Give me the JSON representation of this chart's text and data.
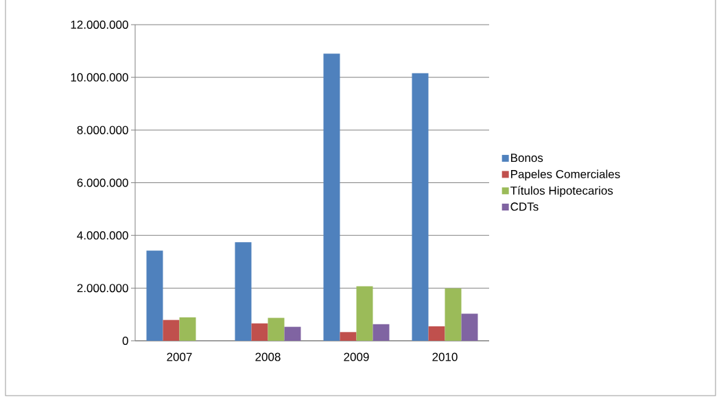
{
  "chart_data": {
    "type": "bar",
    "categories": [
      "2007",
      "2008",
      "2009",
      "2010"
    ],
    "series": [
      {
        "name": "Bonos",
        "color": "#4f81bd",
        "values": [
          3420000,
          3740000,
          10900000,
          10160000
        ]
      },
      {
        "name": "Papeles Comerciales",
        "color": "#c0504d",
        "values": [
          790000,
          660000,
          330000,
          550000
        ]
      },
      {
        "name": "Títulos Hipotecarios",
        "color": "#9bbb59",
        "values": [
          890000,
          870000,
          2070000,
          1990000
        ]
      },
      {
        "name": "CDTs",
        "color": "#8064a2",
        "values": [
          null,
          530000,
          630000,
          1030000
        ]
      }
    ],
    "ylim": [
      0,
      12000000
    ],
    "yticks": [
      {
        "value": 0,
        "label": "0"
      },
      {
        "value": 2000000,
        "label": "2.000.000"
      },
      {
        "value": 4000000,
        "label": "4.000.000"
      },
      {
        "value": 6000000,
        "label": "6.000.000"
      },
      {
        "value": 8000000,
        "label": "8.000.000"
      },
      {
        "value": 10000000,
        "label": "10.000.000"
      },
      {
        "value": 12000000,
        "label": "12.000.000"
      }
    ],
    "grid": "y",
    "legend": "right"
  }
}
